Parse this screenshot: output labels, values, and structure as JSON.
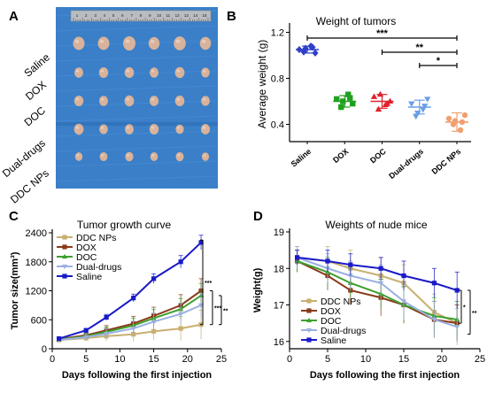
{
  "panel_letters": {
    "a": "A",
    "b": "B",
    "c": "C",
    "d": "D"
  },
  "photo": {
    "rows": [
      "Saline",
      "DOX",
      "DOC",
      "Dual-drugs",
      "DDC NPs"
    ],
    "ruler_marks": [
      "1",
      "2",
      "3",
      "4",
      "5",
      "6",
      "7",
      "8",
      "9",
      "10",
      "11",
      "12",
      "13",
      "14",
      "15"
    ],
    "colors": {
      "background": "#3a7fc8",
      "tumor": "#d8b29a",
      "ruler": "#b9bcc0"
    }
  },
  "chart_data": [
    {
      "id": "weight-of-tumors",
      "type": "scatter",
      "title": "Weight of tumors",
      "xlabel": "",
      "ylabel": "Average weight (g)",
      "ylim": [
        0.25,
        1.25
      ],
      "yticks": [
        0.4,
        0.8,
        1.2
      ],
      "categories": [
        "Saline",
        "DOX",
        "DOC",
        "Dual-drugs",
        "DDC NPs"
      ],
      "colors": [
        "#2f3fc8",
        "#1fa01f",
        "#e0202a",
        "#6a9ee8",
        "#f0a070"
      ],
      "markers": [
        "diamond",
        "square",
        "triangle-up",
        "triangle-down",
        "circle"
      ],
      "points": [
        [
          1.05,
          1.03,
          1.08,
          1.02,
          1.06,
          1.07
        ],
        [
          0.62,
          0.55,
          0.66,
          0.58,
          0.6,
          0.63
        ],
        [
          0.64,
          0.53,
          0.57,
          0.6,
          0.66,
          0.58
        ],
        [
          0.58,
          0.47,
          0.53,
          0.62,
          0.5,
          0.56
        ],
        [
          0.45,
          0.4,
          0.35,
          0.48,
          0.43,
          0.42
        ]
      ],
      "means": [
        1.05,
        0.6,
        0.6,
        0.55,
        0.42
      ],
      "sd": [
        0.03,
        0.05,
        0.06,
        0.06,
        0.08
      ],
      "significance": [
        {
          "from": "Saline",
          "to": "DDC NPs",
          "label": "***"
        },
        {
          "from": "DOC",
          "to": "DDC NPs",
          "label": "**"
        },
        {
          "from": "Dual-drugs",
          "to": "DDC NPs",
          "label": "*"
        }
      ]
    },
    {
      "id": "tumor-growth-curve",
      "type": "line",
      "title": "Tumor growth curve",
      "xlabel": "Days following the first injection",
      "ylabel": "Tumor size(mm³)",
      "xlim": [
        0,
        25
      ],
      "ylim": [
        0,
        2400
      ],
      "xticks": [
        0,
        5,
        10,
        15,
        20,
        25
      ],
      "yticks": [
        0,
        600,
        1200,
        1800,
        2400
      ],
      "legend_position": "top-left",
      "x": [
        1,
        5,
        8,
        12,
        15,
        19,
        22
      ],
      "series": [
        {
          "name": "DDC NPs",
          "color": "#c8b070",
          "marker": "square",
          "values": [
            180,
            220,
            260,
            300,
            360,
            420,
            500
          ],
          "err": [
            30,
            60,
            100,
            150,
            180,
            250,
            300
          ]
        },
        {
          "name": "DOX",
          "color": "#8b3a1a",
          "marker": "square",
          "values": [
            200,
            280,
            380,
            520,
            680,
            900,
            1200
          ],
          "err": [
            30,
            60,
            100,
            150,
            180,
            220,
            250
          ]
        },
        {
          "name": "DOC",
          "color": "#3da02f",
          "marker": "triangle-up",
          "values": [
            190,
            260,
            350,
            480,
            630,
            820,
            1100
          ],
          "err": [
            30,
            60,
            100,
            150,
            180,
            220,
            250
          ]
        },
        {
          "name": "Dual-drugs",
          "color": "#9ab0e0",
          "marker": "triangle-down",
          "values": [
            180,
            240,
            310,
            420,
            560,
            720,
            900
          ],
          "err": [
            30,
            60,
            100,
            150,
            180,
            220,
            250
          ]
        },
        {
          "name": "Saline",
          "color": "#1a1ac8",
          "marker": "square",
          "values": [
            210,
            380,
            650,
            1050,
            1450,
            1800,
            2200
          ],
          "err": [
            20,
            40,
            60,
            80,
            100,
            130,
            150
          ]
        }
      ],
      "significance": [
        {
          "label": "***",
          "from": "Saline",
          "to": "DDC NPs"
        },
        {
          "label": "***",
          "from": "DOX",
          "to": "DDC NPs"
        },
        {
          "label": "**",
          "from": "DOC",
          "to": "DDC NPs"
        }
      ]
    },
    {
      "id": "weights-of-nude-mice",
      "type": "line",
      "title": "Weights of nude mice",
      "xlabel": "Days following the first injection",
      "ylabel": "Weight(g)",
      "xlim": [
        0,
        25
      ],
      "ylim": [
        15.8,
        19
      ],
      "xticks": [
        0,
        5,
        10,
        15,
        20,
        25
      ],
      "yticks": [
        16,
        17,
        18,
        19
      ],
      "legend_position": "bottom-left",
      "x": [
        1,
        5,
        8,
        12,
        15,
        19,
        22
      ],
      "series": [
        {
          "name": "DDC NPs",
          "color": "#c8b070",
          "marker": "square",
          "values": [
            18.3,
            18.2,
            18.0,
            17.8,
            17.6,
            16.8,
            16.5
          ],
          "err": [
            0.3,
            0.4,
            0.5,
            0.5,
            0.5,
            0.5,
            0.5
          ]
        },
        {
          "name": "DOX",
          "color": "#8b3a1a",
          "marker": "square",
          "values": [
            18.2,
            17.8,
            17.4,
            17.2,
            17.0,
            16.6,
            16.5
          ],
          "err": [
            0.3,
            0.4,
            0.4,
            0.5,
            0.5,
            0.5,
            0.5
          ]
        },
        {
          "name": "DOC",
          "color": "#3da02f",
          "marker": "triangle-up",
          "values": [
            18.2,
            17.9,
            17.6,
            17.3,
            17.0,
            16.7,
            16.6
          ],
          "err": [
            0.3,
            0.4,
            0.4,
            0.4,
            0.5,
            0.5,
            0.5
          ]
        },
        {
          "name": "Dual-drugs",
          "color": "#9ab0e0",
          "marker": "triangle-down",
          "values": [
            18.3,
            18.0,
            17.8,
            17.6,
            17.1,
            16.6,
            16.4
          ],
          "err": [
            0.3,
            0.4,
            0.4,
            0.5,
            0.5,
            0.5,
            0.5
          ]
        },
        {
          "name": "Saline",
          "color": "#1a1ac8",
          "marker": "square",
          "values": [
            18.3,
            18.2,
            18.1,
            18.0,
            17.8,
            17.6,
            17.4
          ],
          "err": [
            0.2,
            0.3,
            0.3,
            0.3,
            0.4,
            0.4,
            0.5
          ]
        }
      ],
      "significance": [
        {
          "label": "*",
          "from": "Saline",
          "to": "DDC NPs"
        },
        {
          "label": "**",
          "from": "Saline",
          "to": "DOX"
        }
      ]
    }
  ]
}
